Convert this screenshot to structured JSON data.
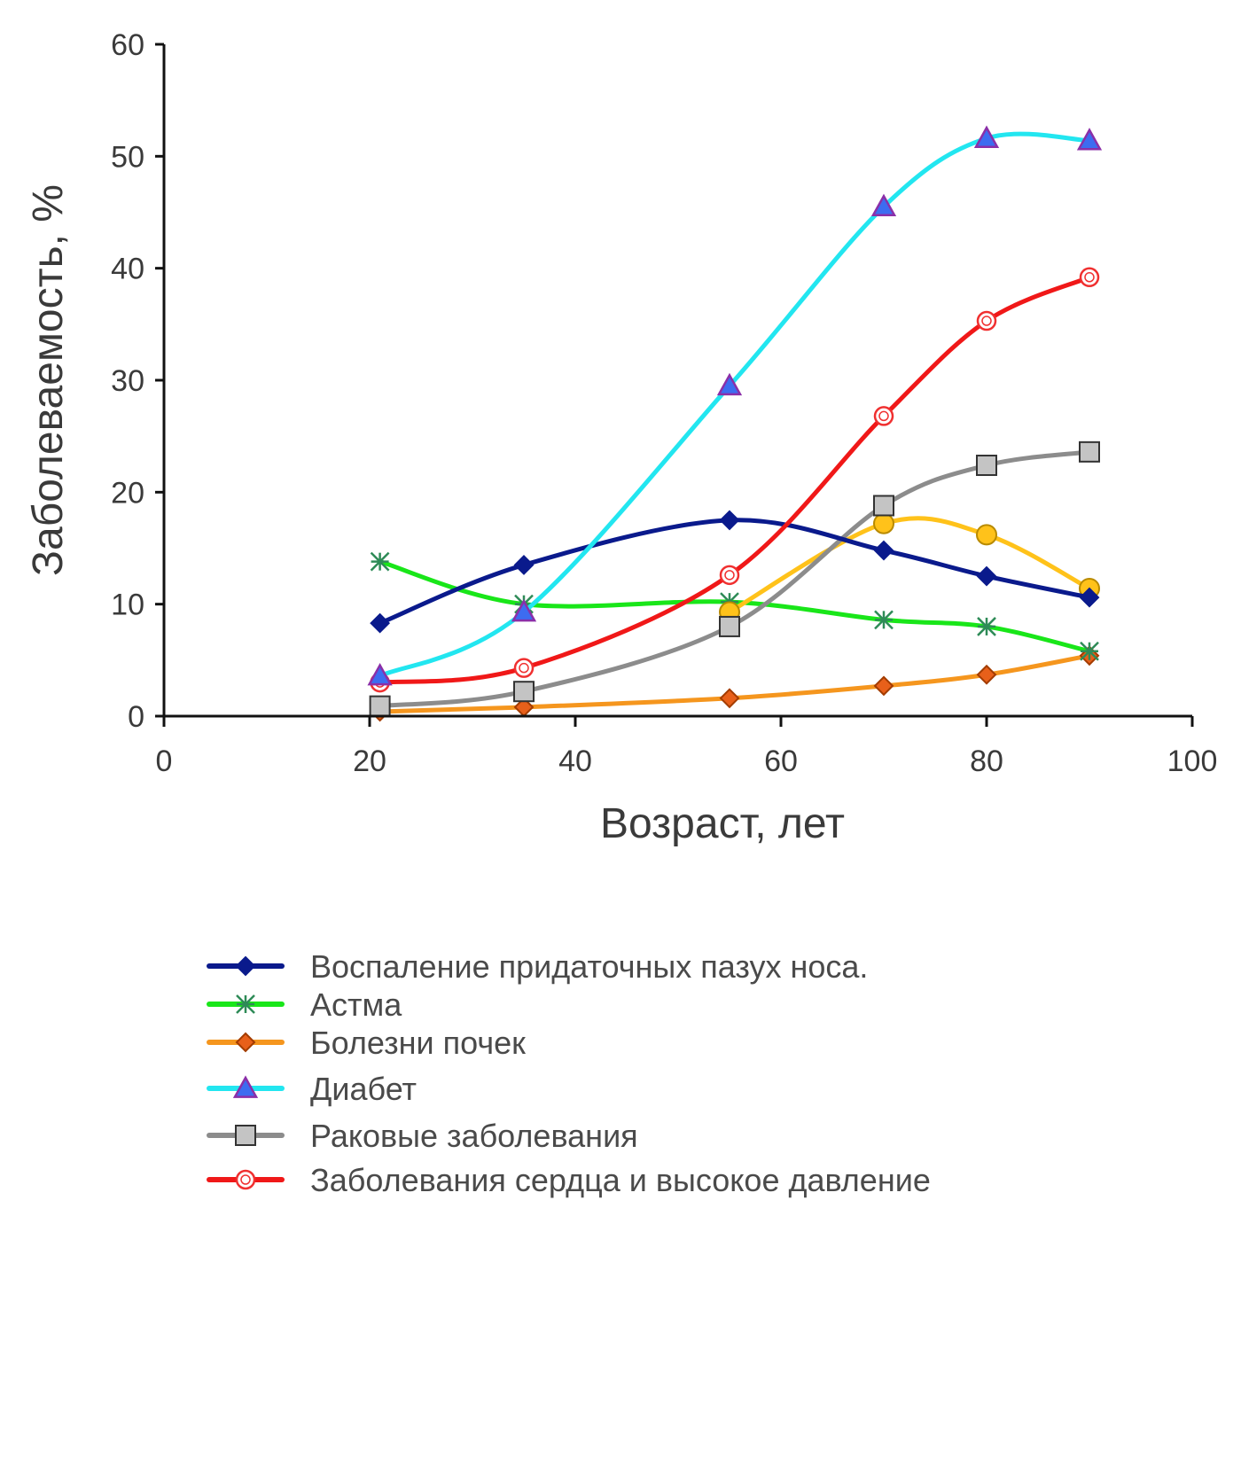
{
  "chart_data": {
    "type": "line",
    "xlabel": "Возраст, лет",
    "ylabel": "Заболеваемость, %",
    "xlim": [
      0,
      100
    ],
    "ylim": [
      0,
      60
    ],
    "x_ticks": [
      "0",
      "20",
      "40",
      "60",
      "80",
      "100"
    ],
    "y_ticks": [
      "0",
      "10",
      "20",
      "30",
      "40",
      "50",
      "60"
    ],
    "x": [
      21,
      35,
      55,
      70,
      80,
      90
    ],
    "grid": false,
    "legend_position": "bottom",
    "series": [
      {
        "name": "Воспаление придаточных пазух носа.",
        "color": "#0a1a8c",
        "marker": "diamond",
        "marker_fill": "#0a1a8c",
        "marker_stroke": "#0a1a8c",
        "values": [
          8.3,
          13.5,
          17.5,
          14.8,
          12.5,
          10.6
        ]
      },
      {
        "name": "Астма",
        "color": "#19e619",
        "marker": "asterisk",
        "marker_fill": "none",
        "marker_stroke": "#2e8b57",
        "values": [
          13.8,
          10.0,
          10.2,
          8.6,
          8.0,
          5.8
        ]
      },
      {
        "name": "Болезни почек",
        "color": "#f5961e",
        "marker": "diamond",
        "marker_fill": "#e8601a",
        "marker_stroke": "#a33c00",
        "values": [
          0.4,
          0.8,
          1.6,
          2.7,
          3.7,
          5.4
        ]
      },
      {
        "name": "Диабет",
        "color": "#22e6f0",
        "marker": "triangle",
        "marker_fill": "#3d6cf0",
        "marker_stroke": "#8b2fa8",
        "values": [
          3.6,
          9.3,
          29.5,
          45.5,
          51.6,
          51.4
        ]
      },
      {
        "name": "Раковые заболевания",
        "color": "#8c8c8c",
        "marker": "square",
        "marker_fill": "#c4c4c4",
        "marker_stroke": "#333333",
        "values": [
          0.9,
          2.2,
          8.0,
          18.8,
          22.4,
          23.6
        ]
      },
      {
        "name": "Заболевания сердца и высокое давление",
        "color": "#f01818",
        "marker": "circle-open",
        "marker_fill": "#ffffff",
        "marker_stroke": "#f03030",
        "values": [
          3.0,
          4.3,
          12.6,
          26.8,
          35.3,
          39.2
        ]
      }
    ],
    "extra_series": [
      {
        "color": "#ffc21a",
        "marker": "circle",
        "marker_fill": "#ffc21a",
        "marker_stroke": "#b88a00",
        "values": [
          null,
          null,
          9.3,
          17.2,
          16.2,
          11.4
        ]
      }
    ]
  }
}
